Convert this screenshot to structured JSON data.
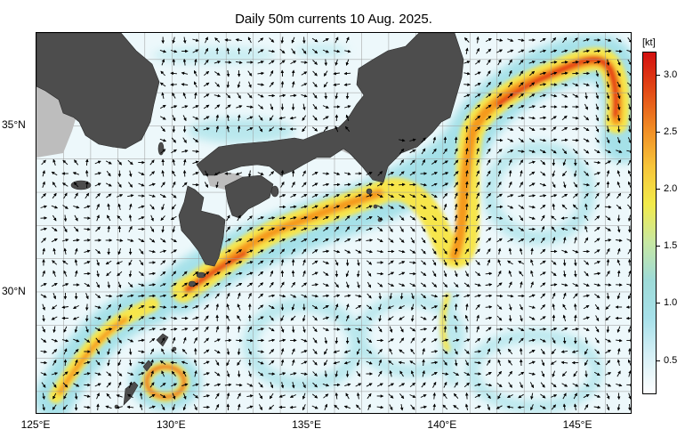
{
  "title": "Daily 50m currents 10 Aug. 2025.",
  "map": {
    "lon_range": [
      125,
      147
    ],
    "lat_range": [
      26.3,
      37.8
    ],
    "x_ticks": [
      {
        "lon": 125,
        "label": "125°E"
      },
      {
        "lon": 130,
        "label": "130°E"
      },
      {
        "lon": 135,
        "label": "135°E"
      },
      {
        "lon": 140,
        "label": "140°E"
      },
      {
        "lon": 145,
        "label": "145°E"
      }
    ],
    "y_ticks": [
      {
        "lat": 35,
        "label": "35°N"
      },
      {
        "lat": 30,
        "label": "30°N"
      }
    ],
    "colors": {
      "land": "#4d4d4d",
      "shelf": "#bdbdbd",
      "weak": "#dff3f8",
      "cyan": "#9edfe7",
      "yellow": "#f7e64b",
      "orange": "#f59a1f",
      "red": "#e53a12",
      "arrow": "#000000"
    }
  },
  "colorbar": {
    "unit": "[kt]",
    "range": [
      0.2,
      3.2
    ],
    "labels": [
      "3.0",
      "2.5",
      "2.0",
      "1.5",
      "1.0",
      "0.5"
    ],
    "label_values": [
      3.0,
      2.5,
      2.0,
      1.5,
      1.0,
      0.5
    ],
    "stops": [
      "#fdfeff",
      "#d6f0f6",
      "#a7e1ea",
      "#9edbd8",
      "#c8e8a2",
      "#f2ea4a",
      "#f7c43a",
      "#f08a24",
      "#e24a16",
      "#d31010"
    ]
  }
}
